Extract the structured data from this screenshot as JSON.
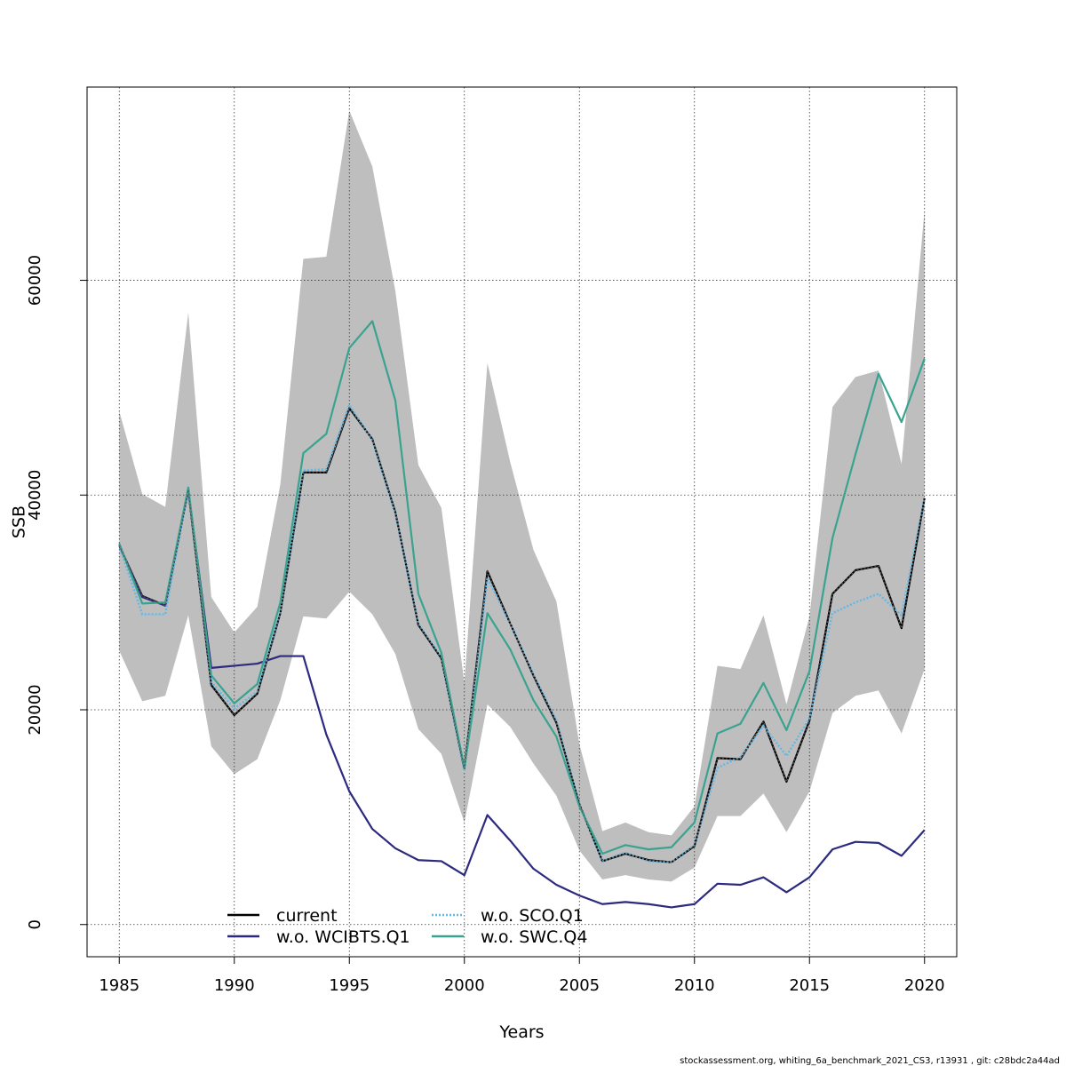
{
  "chart_data": {
    "type": "line",
    "title": "",
    "xlabel": "Years",
    "ylabel": "SSB",
    "xlim": [
      1983.6,
      2021.4
    ],
    "ylim": [
      -3000,
      78000
    ],
    "xticks": [
      1985,
      1990,
      1995,
      2000,
      2005,
      2010,
      2015,
      2020
    ],
    "xtick_labels": [
      "1985",
      "1990",
      "1995",
      "2000",
      "2005",
      "2010",
      "2015",
      "2020"
    ],
    "yticks": [
      0,
      20000,
      40000,
      60000
    ],
    "ytick_labels": [
      "0",
      "20000",
      "40000",
      "60000"
    ],
    "grid": true,
    "legend_position": "bottom-center",
    "x": [
      1985,
      1986,
      1987,
      1988,
      1989,
      1990,
      1991,
      1992,
      1993,
      1994,
      1995,
      1996,
      1997,
      1998,
      1999,
      2000,
      2001,
      2002,
      2003,
      2004,
      2005,
      2006,
      2007,
      2008,
      2009,
      2010,
      2011,
      2012,
      2013,
      2014,
      2015,
      2016,
      2017,
      2018,
      2019,
      2020
    ],
    "band": {
      "color": "#bebebe",
      "upper": [
        47800,
        40100,
        38900,
        57000,
        30500,
        27200,
        29600,
        41000,
        62000,
        62200,
        75800,
        70600,
        59000,
        42800,
        38800,
        22500,
        52300,
        43000,
        34900,
        30100,
        16800,
        8700,
        9500,
        8600,
        8300,
        11000,
        24100,
        23800,
        28800,
        20500,
        28700,
        48200,
        51000,
        51600,
        42900,
        66500
      ],
      "lower": [
        25500,
        20800,
        21300,
        28800,
        16600,
        14000,
        15400,
        20900,
        28700,
        28500,
        31000,
        28900,
        25200,
        18200,
        15900,
        9500,
        20500,
        18400,
        15000,
        12000,
        6900,
        4200,
        4600,
        4200,
        4000,
        5300,
        10100,
        10100,
        12200,
        8600,
        12400,
        19700,
        21300,
        21800,
        17800,
        23800
      ]
    },
    "series": [
      {
        "name": "current",
        "color": "#000000",
        "dash": "solid",
        "values": [
          35300,
          30600,
          29700,
          40500,
          22300,
          19500,
          21500,
          29000,
          42100,
          42100,
          48100,
          45200,
          38400,
          27900,
          24800,
          14500,
          32900,
          28000,
          23200,
          18800,
          11200,
          5900,
          6600,
          6000,
          5800,
          7300,
          15500,
          15400,
          18900,
          13300,
          19000,
          30800,
          33000,
          33400,
          27600,
          39700
        ]
      },
      {
        "name": "w.o. WCIBTS.Q1",
        "color": "#2c2a7e",
        "dash": "solid",
        "values": [
          35300,
          30500,
          29700,
          40500,
          23900,
          24100,
          24300,
          25000,
          25000,
          17700,
          12400,
          8900,
          7100,
          6000,
          5900,
          4600,
          10200,
          7800,
          5200,
          3700,
          2700,
          1900,
          2100,
          1900,
          1600,
          1900,
          3800,
          3700,
          4400,
          3000,
          4400,
          7000,
          7700,
          7600,
          6400,
          8800
        ]
      },
      {
        "name": "w.o. SCO.Q1",
        "color": "#63b8e6",
        "dash": "dotted",
        "values": [
          35300,
          28900,
          28900,
          40700,
          22600,
          20100,
          21700,
          29100,
          42300,
          42400,
          48400,
          45100,
          38300,
          28000,
          24900,
          14300,
          32300,
          28000,
          23300,
          19000,
          11200,
          5900,
          6700,
          5900,
          5800,
          7400,
          14600,
          15600,
          18500,
          15700,
          19200,
          29000,
          30000,
          30800,
          28800,
          39700
        ]
      },
      {
        "name": "w.o. SWC.Q4",
        "color": "#3aa38f",
        "dash": "solid",
        "values": [
          35500,
          29900,
          30000,
          40700,
          23200,
          20600,
          22400,
          30000,
          43900,
          45700,
          53700,
          56200,
          48800,
          30800,
          25300,
          14600,
          29000,
          25600,
          20900,
          17500,
          11000,
          6600,
          7400,
          7000,
          7200,
          9500,
          17800,
          18700,
          22500,
          18100,
          23600,
          36000,
          43800,
          51300,
          46800,
          52700
        ]
      }
    ],
    "footer": "stockassessment.org, whiting_6a_benchmark_2021_CS3, r13931 , git: c28bdc2a44ad"
  }
}
